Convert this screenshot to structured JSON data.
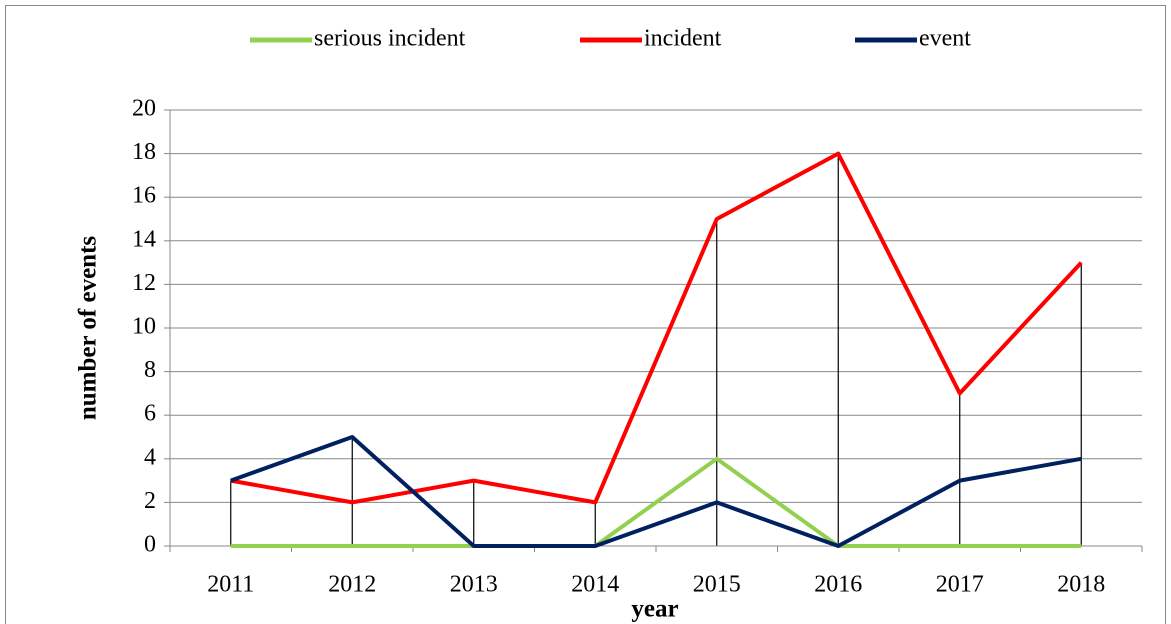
{
  "chart_data": {
    "type": "line",
    "xlabel": "year",
    "ylabel": "number of events",
    "categories": [
      "2011",
      "2012",
      "2013",
      "2014",
      "2015",
      "2016",
      "2017",
      "2018"
    ],
    "series": [
      {
        "name": "serious incident",
        "color": "#92d050",
        "values": [
          0,
          0,
          0,
          0,
          4,
          0,
          0,
          0
        ]
      },
      {
        "name": "incident",
        "color": "#ff0000",
        "values": [
          3,
          2,
          3,
          2,
          15,
          18,
          7,
          13
        ]
      },
      {
        "name": "event",
        "color": "#002060",
        "values": [
          3,
          5,
          0,
          0,
          2,
          0,
          3,
          4
        ]
      }
    ],
    "ylim": [
      0,
      20
    ],
    "yticks": [
      0,
      2,
      4,
      6,
      8,
      10,
      12,
      14,
      16,
      18,
      20
    ],
    "grid": true,
    "legend": "top",
    "drop_lines": true
  }
}
